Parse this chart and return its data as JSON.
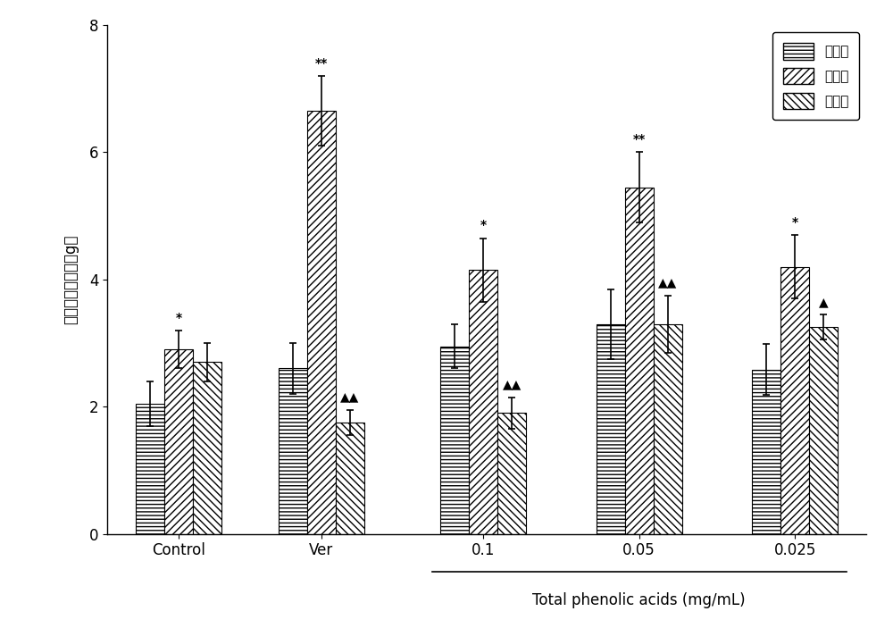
{
  "groups": [
    "Control",
    "Ver",
    "0.1",
    "0.05",
    "0.025"
  ],
  "series_labels": [
    "造模前",
    "造模后",
    "给药后"
  ],
  "values": [
    [
      2.05,
      2.9,
      2.7
    ],
    [
      2.6,
      6.65,
      1.75
    ],
    [
      2.95,
      4.15,
      1.9
    ],
    [
      3.3,
      5.45,
      3.3
    ],
    [
      2.58,
      4.2,
      3.25
    ]
  ],
  "errors": [
    [
      0.35,
      0.3,
      0.3
    ],
    [
      0.4,
      0.55,
      0.2
    ],
    [
      0.35,
      0.5,
      0.25
    ],
    [
      0.55,
      0.55,
      0.45
    ],
    [
      0.4,
      0.5,
      0.2
    ]
  ],
  "annotations": [
    [
      null,
      "*",
      null
    ],
    [
      null,
      "**",
      "▲▲"
    ],
    [
      null,
      "*",
      "▲▲"
    ],
    [
      null,
      "**",
      "▲▲"
    ],
    [
      null,
      "*",
      "▲"
    ]
  ],
  "hatch_patterns": [
    "------",
    "//////",
    "\\\\\\\\\\\\"
  ],
  "ylabel": "收缩张力平均値（g）",
  "xlabel_main": "Total phenolic acids (mg/mL)",
  "ylim": [
    0,
    8
  ],
  "yticks": [
    0,
    2,
    4,
    6,
    8
  ],
  "bar_width": 0.22,
  "group_centers": [
    0.35,
    1.45,
    2.7,
    3.9,
    5.1
  ]
}
